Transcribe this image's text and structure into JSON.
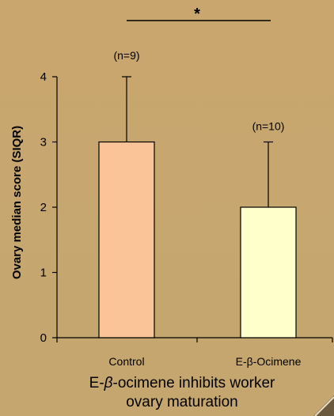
{
  "chart_data": {
    "type": "bar",
    "categories": [
      "Control",
      "E-β-Ocimene"
    ],
    "values": [
      3,
      2
    ],
    "error_upper": [
      1,
      1
    ],
    "annotations": [
      "(n=9)",
      "(n=10)"
    ],
    "significance": "*",
    "ylabel": "Ovary median score (SIQR)",
    "ylim": [
      0,
      4
    ],
    "yticks": [
      "0",
      "1",
      "2",
      "3",
      "4"
    ],
    "colors": [
      "#fbc498",
      "#ffffcc"
    ],
    "grid": false
  },
  "caption": {
    "prefix": "E-",
    "beta": "β",
    "line1_rest": "-ocimene inhibits worker",
    "line2": "ovary maturation"
  },
  "colors": {
    "background": "#c8a870"
  }
}
